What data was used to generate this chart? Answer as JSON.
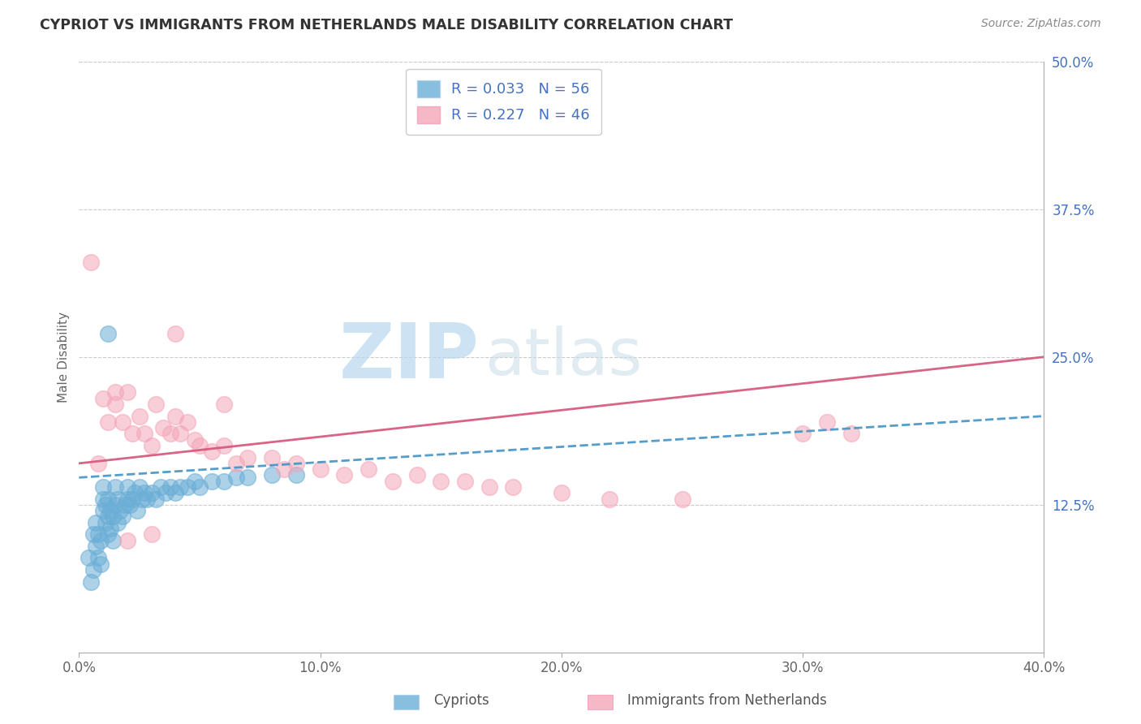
{
  "title": "CYPRIOT VS IMMIGRANTS FROM NETHERLANDS MALE DISABILITY CORRELATION CHART",
  "source": "Source: ZipAtlas.com",
  "ylabel": "Male Disability",
  "legend1_label": "Cypriots",
  "legend2_label": "Immigrants from Netherlands",
  "r1": 0.033,
  "n1": 56,
  "r2": 0.227,
  "n2": 46,
  "color1": "#6baed6",
  "color2": "#f4a6b8",
  "trendline1_color": "#4292c6",
  "trendline2_color": "#d4547a",
  "xlim": [
    0.0,
    0.4
  ],
  "ylim": [
    0.0,
    0.5
  ],
  "xticks": [
    0.0,
    0.1,
    0.2,
    0.3,
    0.4
  ],
  "yticks_right": [
    0.125,
    0.25,
    0.375,
    0.5
  ],
  "background_color": "#ffffff",
  "watermark_zip": "ZIP",
  "watermark_atlas": "atlas",
  "scatter1_x": [
    0.004,
    0.005,
    0.006,
    0.006,
    0.007,
    0.007,
    0.008,
    0.008,
    0.009,
    0.009,
    0.01,
    0.01,
    0.01,
    0.011,
    0.011,
    0.012,
    0.012,
    0.012,
    0.013,
    0.013,
    0.014,
    0.014,
    0.015,
    0.015,
    0.016,
    0.016,
    0.017,
    0.018,
    0.019,
    0.02,
    0.02,
    0.021,
    0.022,
    0.023,
    0.024,
    0.025,
    0.026,
    0.027,
    0.028,
    0.03,
    0.032,
    0.034,
    0.036,
    0.038,
    0.04,
    0.042,
    0.045,
    0.048,
    0.05,
    0.055,
    0.06,
    0.065,
    0.07,
    0.08,
    0.09,
    0.012
  ],
  "scatter1_y": [
    0.08,
    0.06,
    0.07,
    0.1,
    0.09,
    0.11,
    0.08,
    0.1,
    0.075,
    0.095,
    0.12,
    0.13,
    0.14,
    0.11,
    0.125,
    0.1,
    0.115,
    0.13,
    0.105,
    0.12,
    0.095,
    0.115,
    0.14,
    0.125,
    0.11,
    0.13,
    0.12,
    0.115,
    0.125,
    0.13,
    0.14,
    0.125,
    0.13,
    0.135,
    0.12,
    0.14,
    0.13,
    0.135,
    0.13,
    0.135,
    0.13,
    0.14,
    0.135,
    0.14,
    0.135,
    0.14,
    0.14,
    0.145,
    0.14,
    0.145,
    0.145,
    0.148,
    0.148,
    0.15,
    0.15,
    0.27
  ],
  "scatter2_x": [
    0.005,
    0.008,
    0.01,
    0.012,
    0.015,
    0.015,
    0.018,
    0.02,
    0.022,
    0.025,
    0.027,
    0.03,
    0.032,
    0.035,
    0.038,
    0.04,
    0.042,
    0.045,
    0.048,
    0.05,
    0.055,
    0.06,
    0.065,
    0.07,
    0.08,
    0.085,
    0.09,
    0.1,
    0.11,
    0.12,
    0.13,
    0.14,
    0.15,
    0.16,
    0.17,
    0.18,
    0.2,
    0.22,
    0.25,
    0.3,
    0.31,
    0.32,
    0.04,
    0.06,
    0.02,
    0.03
  ],
  "scatter2_y": [
    0.33,
    0.16,
    0.215,
    0.195,
    0.22,
    0.21,
    0.195,
    0.22,
    0.185,
    0.2,
    0.185,
    0.175,
    0.21,
    0.19,
    0.185,
    0.2,
    0.185,
    0.195,
    0.18,
    0.175,
    0.17,
    0.175,
    0.16,
    0.165,
    0.165,
    0.155,
    0.16,
    0.155,
    0.15,
    0.155,
    0.145,
    0.15,
    0.145,
    0.145,
    0.14,
    0.14,
    0.135,
    0.13,
    0.13,
    0.185,
    0.195,
    0.185,
    0.27,
    0.21,
    0.095,
    0.1
  ],
  "trend1_x": [
    0.0,
    0.4
  ],
  "trend1_y": [
    0.148,
    0.2
  ],
  "trend2_x": [
    0.0,
    0.4
  ],
  "trend2_y": [
    0.16,
    0.25
  ]
}
